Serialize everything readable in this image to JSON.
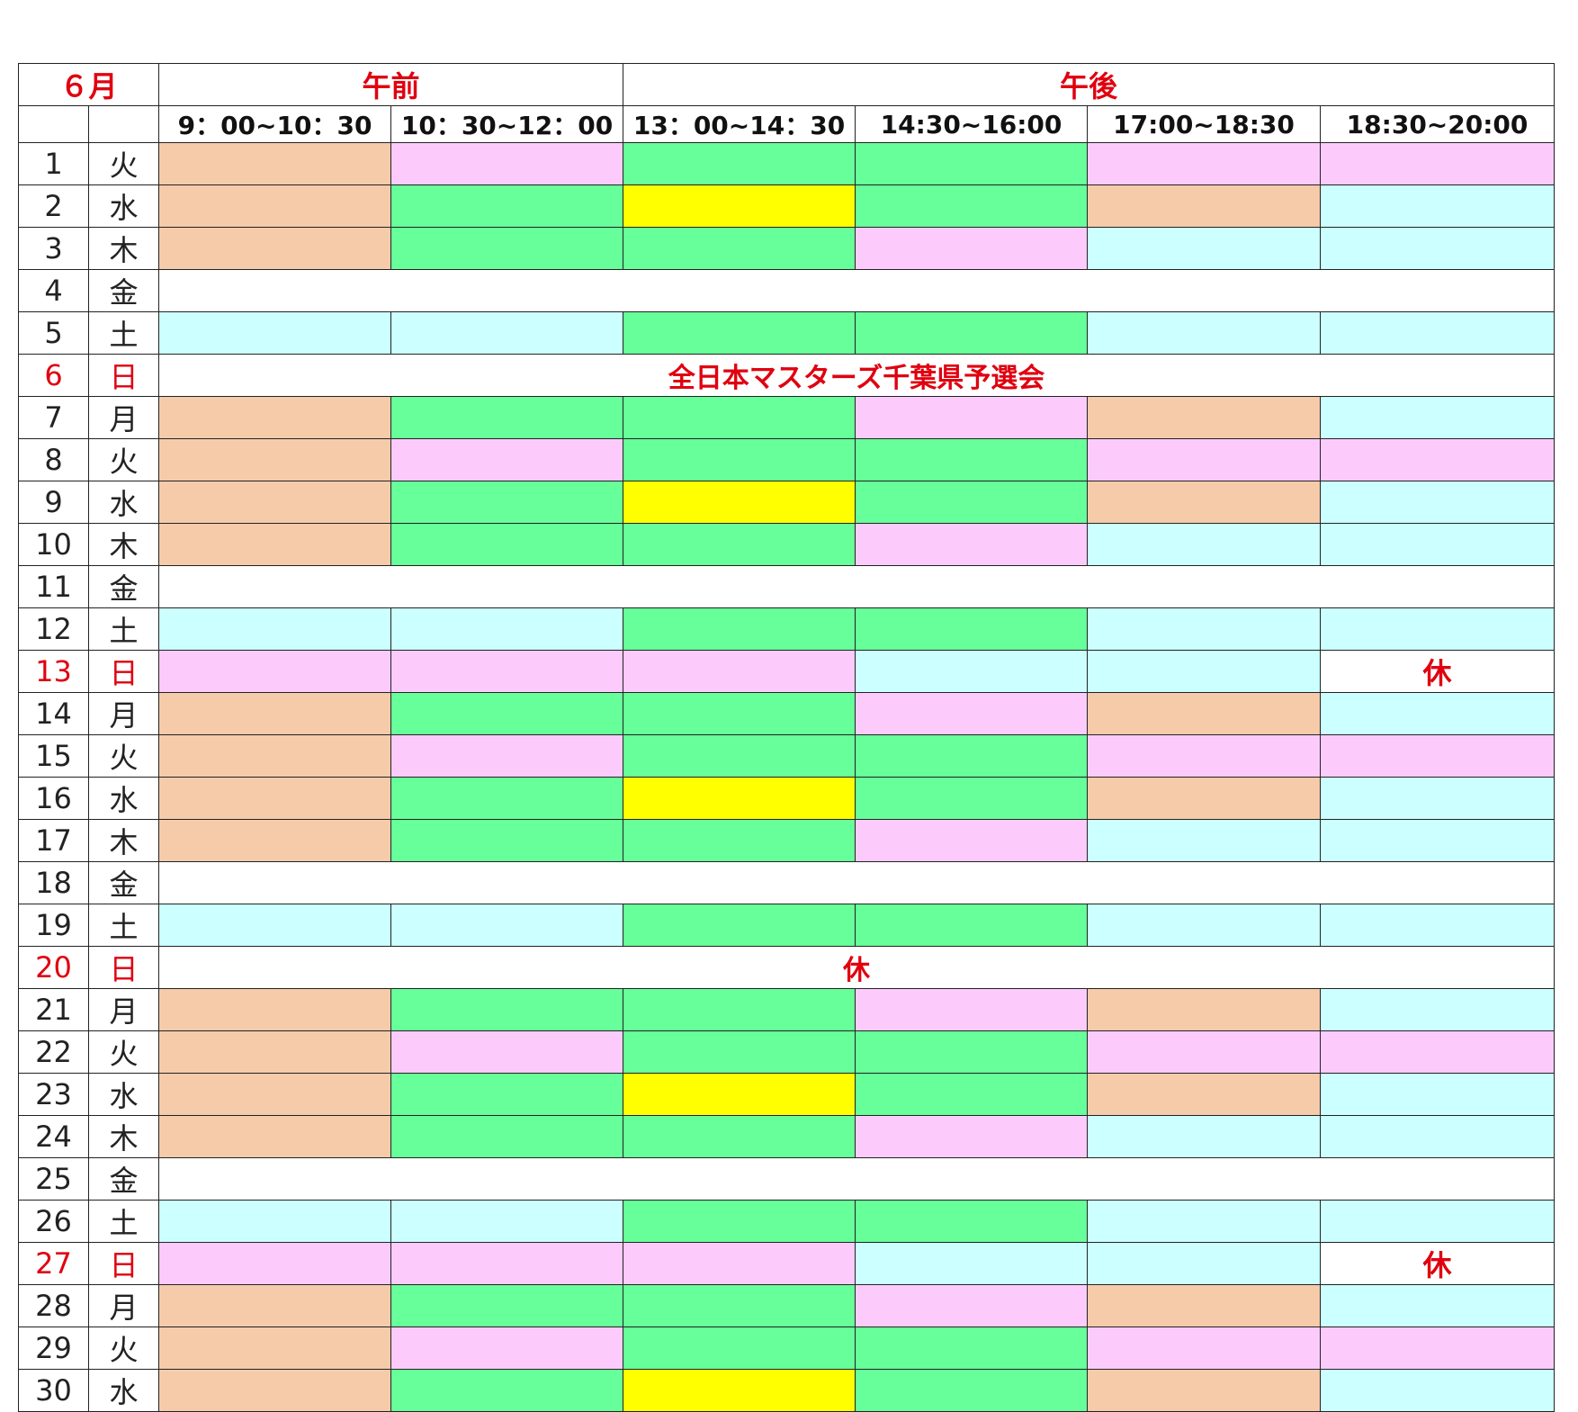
{
  "header": {
    "month": "６月",
    "morning": "午前",
    "afternoon": "午後",
    "slots": [
      "9：00~10：30",
      "10：30~12：00",
      "13：00~14：30",
      "14:30~16:00",
      "17:00~18:30",
      "18:30~20:00"
    ]
  },
  "colors": {
    "orange": "#f6cbaa",
    "pink": "#fccbfc",
    "green": "#66ff99",
    "yellow": "#ffff00",
    "cyan": "#ccffff",
    "white": "#ffffff",
    "holiday_text": "#e0000f"
  },
  "days": [
    {
      "date": "1",
      "weekday": "火",
      "slots": [
        "orange",
        "pink",
        "green",
        "green",
        "pink",
        "pink"
      ]
    },
    {
      "date": "2",
      "weekday": "水",
      "slots": [
        "orange",
        "green",
        "yellow",
        "green",
        "orange",
        "cyan"
      ]
    },
    {
      "date": "3",
      "weekday": "木",
      "slots": [
        "orange",
        "green",
        "green",
        "pink",
        "cyan",
        "cyan"
      ]
    },
    {
      "date": "4",
      "weekday": "金",
      "span": ""
    },
    {
      "date": "5",
      "weekday": "土",
      "slots": [
        "cyan",
        "cyan",
        "green",
        "green",
        "cyan",
        "cyan"
      ]
    },
    {
      "date": "6",
      "weekday": "日",
      "sunday": true,
      "span": "全日本マスターズ千葉県予選会"
    },
    {
      "date": "7",
      "weekday": "月",
      "slots": [
        "orange",
        "green",
        "green",
        "pink",
        "orange",
        "cyan"
      ]
    },
    {
      "date": "8",
      "weekday": "火",
      "slots": [
        "orange",
        "pink",
        "green",
        "green",
        "pink",
        "pink"
      ]
    },
    {
      "date": "9",
      "weekday": "水",
      "slots": [
        "orange",
        "green",
        "yellow",
        "green",
        "orange",
        "cyan"
      ]
    },
    {
      "date": "10",
      "weekday": "木",
      "slots": [
        "orange",
        "green",
        "green",
        "pink",
        "cyan",
        "cyan"
      ]
    },
    {
      "date": "11",
      "weekday": "金",
      "span": ""
    },
    {
      "date": "12",
      "weekday": "土",
      "slots": [
        "cyan",
        "cyan",
        "green",
        "green",
        "cyan",
        "cyan"
      ]
    },
    {
      "date": "13",
      "weekday": "日",
      "sunday": true,
      "slots": [
        "pink",
        "pink",
        "pink",
        "cyan",
        "cyan",
        "white"
      ],
      "last_text": "休"
    },
    {
      "date": "14",
      "weekday": "月",
      "slots": [
        "orange",
        "green",
        "green",
        "pink",
        "orange",
        "cyan"
      ]
    },
    {
      "date": "15",
      "weekday": "火",
      "slots": [
        "orange",
        "pink",
        "green",
        "green",
        "pink",
        "pink"
      ]
    },
    {
      "date": "16",
      "weekday": "水",
      "slots": [
        "orange",
        "green",
        "yellow",
        "green",
        "orange",
        "cyan"
      ]
    },
    {
      "date": "17",
      "weekday": "木",
      "slots": [
        "orange",
        "green",
        "green",
        "pink",
        "cyan",
        "cyan"
      ]
    },
    {
      "date": "18",
      "weekday": "金",
      "span": ""
    },
    {
      "date": "19",
      "weekday": "土",
      "slots": [
        "cyan",
        "cyan",
        "green",
        "green",
        "cyan",
        "cyan"
      ]
    },
    {
      "date": "20",
      "weekday": "日",
      "sunday": true,
      "span": "休"
    },
    {
      "date": "21",
      "weekday": "月",
      "slots": [
        "orange",
        "green",
        "green",
        "pink",
        "orange",
        "cyan"
      ]
    },
    {
      "date": "22",
      "weekday": "火",
      "slots": [
        "orange",
        "pink",
        "green",
        "green",
        "pink",
        "pink"
      ]
    },
    {
      "date": "23",
      "weekday": "水",
      "slots": [
        "orange",
        "green",
        "yellow",
        "green",
        "orange",
        "cyan"
      ]
    },
    {
      "date": "24",
      "weekday": "木",
      "slots": [
        "orange",
        "green",
        "green",
        "pink",
        "cyan",
        "cyan"
      ]
    },
    {
      "date": "25",
      "weekday": "金",
      "span": ""
    },
    {
      "date": "26",
      "weekday": "土",
      "slots": [
        "cyan",
        "cyan",
        "green",
        "green",
        "cyan",
        "cyan"
      ]
    },
    {
      "date": "27",
      "weekday": "日",
      "sunday": true,
      "slots": [
        "pink",
        "pink",
        "pink",
        "cyan",
        "cyan",
        "white"
      ],
      "last_text": "休"
    },
    {
      "date": "28",
      "weekday": "月",
      "slots": [
        "orange",
        "green",
        "green",
        "pink",
        "orange",
        "cyan"
      ]
    },
    {
      "date": "29",
      "weekday": "火",
      "slots": [
        "orange",
        "pink",
        "green",
        "green",
        "pink",
        "pink"
      ]
    },
    {
      "date": "30",
      "weekday": "水",
      "slots": [
        "orange",
        "green",
        "yellow",
        "green",
        "orange",
        "cyan"
      ]
    }
  ]
}
